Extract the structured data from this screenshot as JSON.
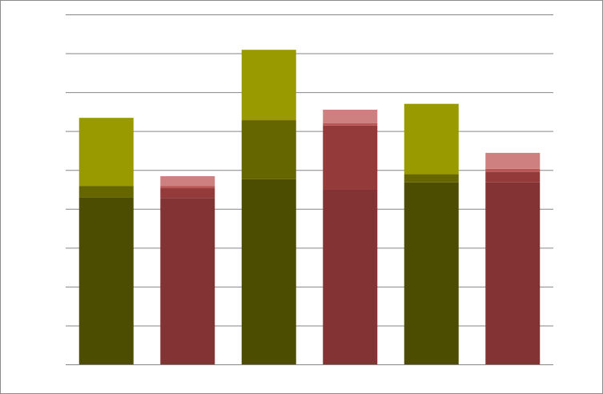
{
  "chart_data": {
    "type": "bar",
    "stacked": true,
    "title": "",
    "xlabel": "",
    "ylabel": "",
    "ylim": [
      0,
      9
    ],
    "grid": true,
    "legend": "none",
    "categories": [
      "",
      "",
      "",
      "",
      "",
      ""
    ],
    "bars": [
      {
        "segments": [
          {
            "value": 4.3,
            "color": "#4d4d00"
          },
          {
            "value": 0.29,
            "color": "#666600"
          },
          {
            "value": 1.75,
            "color": "#999900"
          }
        ]
      },
      {
        "segments": [
          {
            "value": 4.28,
            "color": "#843335"
          },
          {
            "value": 0.25,
            "color": "#953a3b"
          },
          {
            "value": 0.06,
            "color": "#b85555"
          },
          {
            "value": 0.25,
            "color": "#ce8080"
          }
        ]
      },
      {
        "segments": [
          {
            "value": 4.76,
            "color": "#4d4d00"
          },
          {
            "value": 1.52,
            "color": "#666600"
          },
          {
            "value": 1.81,
            "color": "#999900"
          }
        ]
      },
      {
        "segments": [
          {
            "value": 4.49,
            "color": "#843335"
          },
          {
            "value": 1.65,
            "color": "#953a3b"
          },
          {
            "value": 0.06,
            "color": "#b85555"
          },
          {
            "value": 0.35,
            "color": "#ce8080"
          }
        ]
      },
      {
        "segments": [
          {
            "value": 4.68,
            "color": "#4d4d00"
          },
          {
            "value": 0.21,
            "color": "#666600"
          },
          {
            "value": 1.81,
            "color": "#999900"
          }
        ]
      },
      {
        "segments": [
          {
            "value": 4.68,
            "color": "#843335"
          },
          {
            "value": 0.27,
            "color": "#953a3b"
          },
          {
            "value": 0.08,
            "color": "#b85555"
          },
          {
            "value": 0.41,
            "color": "#ce8080"
          }
        ]
      }
    ],
    "gridline_color": "#868686"
  }
}
